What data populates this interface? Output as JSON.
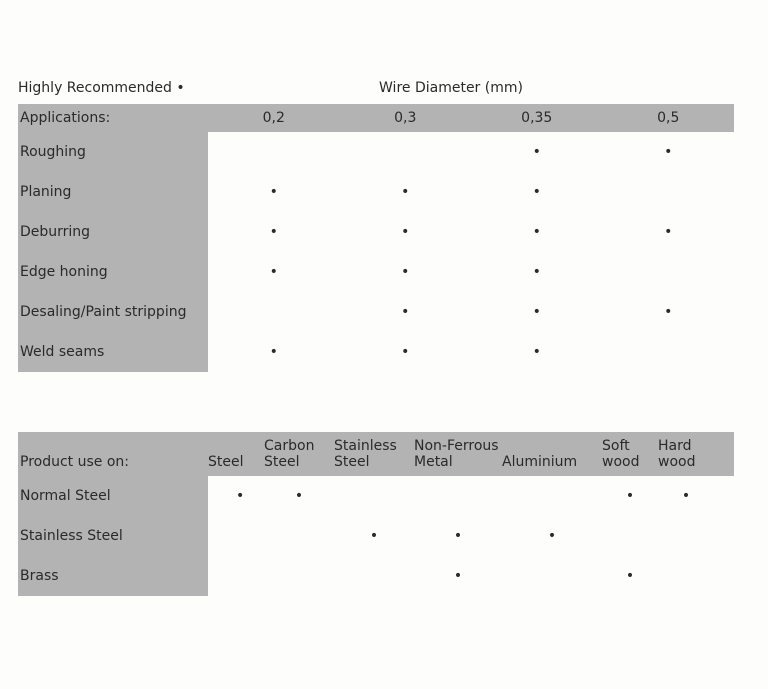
{
  "dot": "•",
  "table1": {
    "legend": "Highly Recommended •",
    "legend_title": "Wire Diameter (mm)",
    "header_label": "Applications:",
    "columns": [
      "0,2",
      "0,3",
      "0,35",
      "0,5"
    ],
    "rows": [
      {
        "label": "Roughing",
        "marks": [
          false,
          false,
          true,
          true
        ]
      },
      {
        "label": "Planing",
        "marks": [
          true,
          true,
          true,
          false
        ]
      },
      {
        "label": "Deburring",
        "marks": [
          true,
          true,
          true,
          true
        ]
      },
      {
        "label": "Edge honing",
        "marks": [
          true,
          true,
          true,
          false
        ]
      },
      {
        "label": "Desaling/Paint stripping",
        "marks": [
          false,
          true,
          true,
          true
        ]
      },
      {
        "label": "Weld seams",
        "marks": [
          true,
          true,
          true,
          false
        ]
      }
    ]
  },
  "table2": {
    "header_label": "Product use on:",
    "columns": [
      "Steel",
      "Carbon Steel",
      "Stainless Steel",
      "Non-Ferrous Metal",
      "Aluminium",
      "Soft wood",
      "Hard wood"
    ],
    "rows": [
      {
        "label": "Normal Steel",
        "marks": [
          true,
          true,
          false,
          false,
          false,
          true,
          true
        ]
      },
      {
        "label": "Stainless Steel",
        "marks": [
          false,
          false,
          true,
          true,
          true,
          false,
          false
        ]
      },
      {
        "label": "Brass",
        "marks": [
          false,
          false,
          false,
          true,
          false,
          true,
          false
        ]
      }
    ]
  },
  "colors": {
    "grey": "#b3b3b3",
    "bg": "#fdfdfb",
    "text": "#2a2a2a"
  }
}
